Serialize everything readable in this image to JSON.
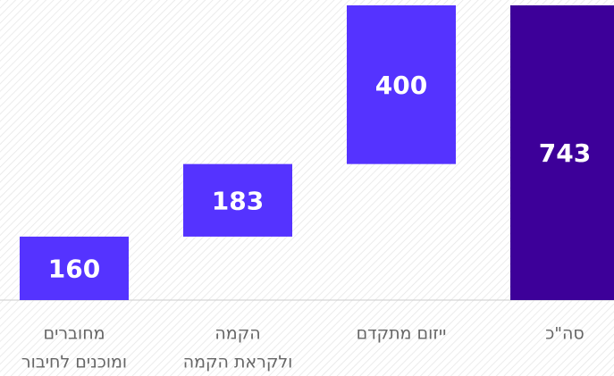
{
  "chart_data": {
    "type": "waterfall",
    "categories": [
      [
        "מחוברים",
        "ומוכנים לחיבור"
      ],
      [
        "הקמה",
        "ולקראת הקמה"
      ],
      [
        "ייזום מתקדם"
      ],
      [
        "סה\"כ"
      ]
    ],
    "values": [
      160,
      183,
      400,
      743
    ],
    "colors": [
      "#5533ff",
      "#5533ff",
      "#5533ff",
      "#3d0099"
    ]
  }
}
